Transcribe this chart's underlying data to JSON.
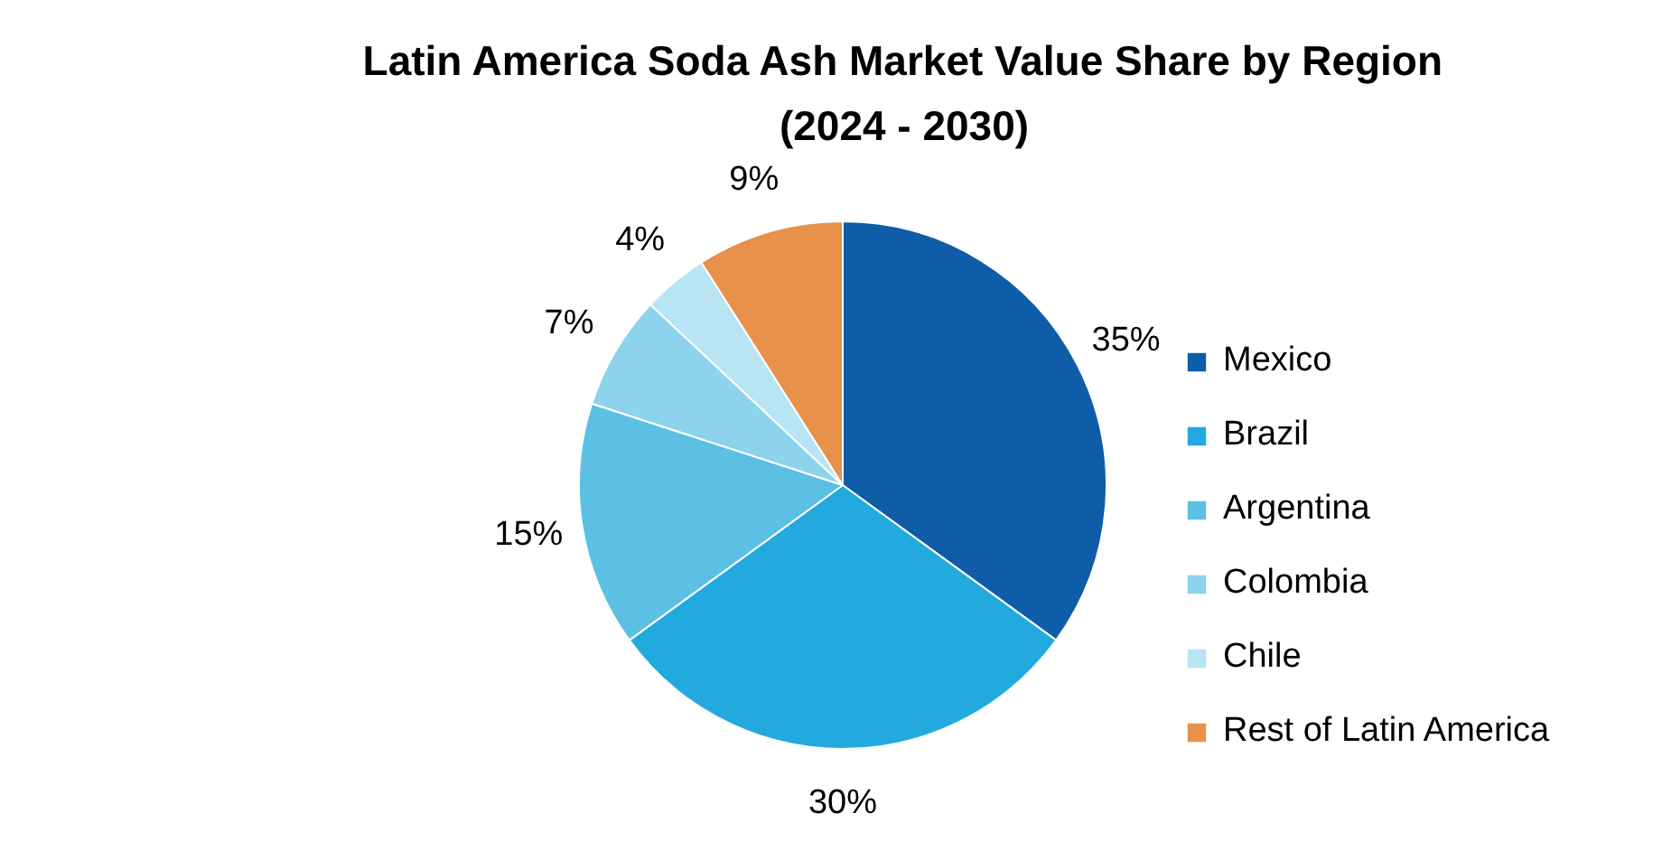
{
  "chart_data": {
    "type": "pie",
    "title": "Latin America Soda Ash Market Value Share by Region\n(2024 - 2030)",
    "categories": [
      "Mexico",
      "Brazil",
      "Argentina",
      "Colombia",
      "Chile",
      "Rest of Latin America"
    ],
    "values": [
      35,
      30,
      15,
      7,
      4,
      9
    ],
    "colors": [
      "#0f5ca8",
      "#22aadf",
      "#5bc0e4",
      "#8dd3ec",
      "#b8e4f4",
      "#e8914a"
    ],
    "value_labels": [
      "35%",
      "30%",
      "15%",
      "7%",
      "4%",
      "9%"
    ],
    "legend": "right"
  }
}
